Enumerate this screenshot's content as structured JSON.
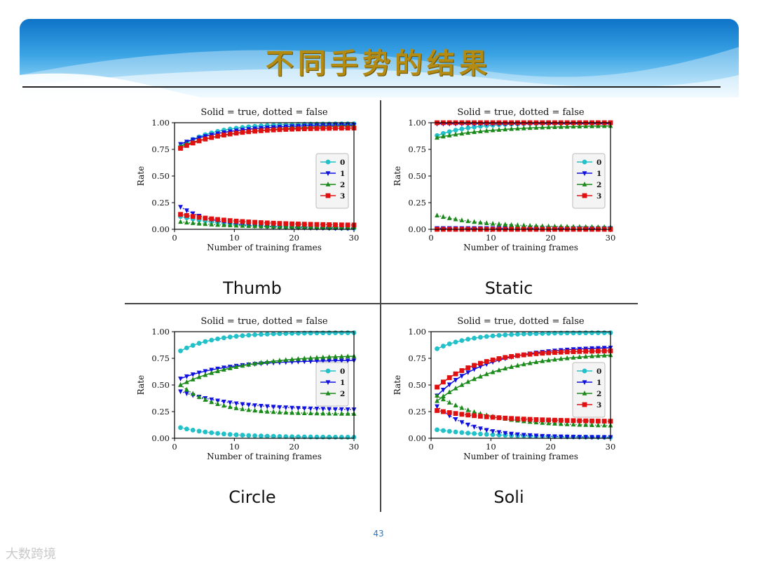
{
  "slide": {
    "title": "不同手势的结果",
    "page_number": "43",
    "watermark": "大数跨境",
    "labels": [
      "Thumb",
      "Static",
      "Circle",
      "Soli"
    ]
  },
  "chart_data": [
    {
      "type": "line",
      "name": "Thumb",
      "title": "Solid = true, dotted = false",
      "xlabel": "Number of training frames",
      "ylabel": "Rate",
      "xlim": [
        0,
        30
      ],
      "ylim": [
        0,
        1
      ],
      "xticks": [
        0,
        10,
        20,
        30
      ],
      "yticks": [
        "0.00",
        "0.25",
        "0.50",
        "0.75",
        "1.00"
      ],
      "legend": "right",
      "x": [
        1,
        30
      ],
      "series": [
        {
          "name": "0",
          "color": "#22c0c8",
          "marker": "circle",
          "style": "solid",
          "values": [
            0.78,
            0.99
          ]
        },
        {
          "name": "1",
          "color": "#1010e0",
          "marker": "tri-down",
          "style": "solid",
          "values": [
            0.8,
            0.98
          ]
        },
        {
          "name": "2",
          "color": "#1a8a1a",
          "marker": "tri-up",
          "style": "solid",
          "values": [
            0.78,
            0.97
          ]
        },
        {
          "name": "3",
          "color": "#e01010",
          "marker": "square",
          "style": "solid",
          "values": [
            0.76,
            0.95
          ]
        },
        {
          "name": "0",
          "color": "#22c0c8",
          "marker": "circle",
          "style": "dotted",
          "values": [
            0.12,
            0.01
          ]
        },
        {
          "name": "1",
          "color": "#1010e0",
          "marker": "tri-down",
          "style": "dotted",
          "values": [
            0.21,
            0.01
          ]
        },
        {
          "name": "2",
          "color": "#1a8a1a",
          "marker": "tri-up",
          "style": "dotted",
          "values": [
            0.07,
            0.02
          ]
        },
        {
          "name": "3",
          "color": "#e01010",
          "marker": "square",
          "style": "dotted",
          "values": [
            0.14,
            0.04
          ]
        }
      ]
    },
    {
      "type": "line",
      "name": "Static",
      "title": "Solid = true, dotted = false",
      "xlabel": "Number of training frames",
      "ylabel": "Rate",
      "xlim": [
        0,
        30
      ],
      "ylim": [
        0,
        1
      ],
      "xticks": [
        0,
        10,
        20,
        30
      ],
      "yticks": [
        "0.00",
        "0.25",
        "0.50",
        "0.75",
        "1.00"
      ],
      "legend": "right",
      "x": [
        1,
        30
      ],
      "series": [
        {
          "name": "0",
          "color": "#22c0c8",
          "marker": "circle",
          "style": "solid",
          "values": [
            0.88,
            1.0
          ]
        },
        {
          "name": "1",
          "color": "#1010e0",
          "marker": "tri-down",
          "style": "solid",
          "values": [
            0.99,
            0.99
          ]
        },
        {
          "name": "2",
          "color": "#1a8a1a",
          "marker": "tri-up",
          "style": "solid",
          "values": [
            0.86,
            0.97
          ]
        },
        {
          "name": "3",
          "color": "#e01010",
          "marker": "square",
          "style": "solid",
          "values": [
            1.0,
            1.0
          ]
        },
        {
          "name": "0",
          "color": "#22c0c8",
          "marker": "circle",
          "style": "dotted",
          "values": [
            0.0,
            0.0
          ]
        },
        {
          "name": "1",
          "color": "#1010e0",
          "marker": "tri-down",
          "style": "dotted",
          "values": [
            0.01,
            0.01
          ]
        },
        {
          "name": "2",
          "color": "#1a8a1a",
          "marker": "tri-up",
          "style": "dotted",
          "values": [
            0.13,
            0.02
          ]
        },
        {
          "name": "3",
          "color": "#e01010",
          "marker": "square",
          "style": "dotted",
          "values": [
            0.0,
            0.0
          ]
        }
      ]
    },
    {
      "type": "line",
      "name": "Circle",
      "title": "Solid = true, dotted = false",
      "xlabel": "Number of training frames",
      "ylabel": "Rate",
      "xlim": [
        0,
        30
      ],
      "ylim": [
        0,
        1
      ],
      "xticks": [
        0,
        10,
        20,
        30
      ],
      "yticks": [
        "0.00",
        "0.25",
        "0.50",
        "0.75",
        "1.00"
      ],
      "legend": "right",
      "x": [
        1,
        30
      ],
      "series": [
        {
          "name": "0",
          "color": "#22c0c8",
          "marker": "circle",
          "style": "solid",
          "values": [
            0.82,
            0.99
          ]
        },
        {
          "name": "1",
          "color": "#1010e0",
          "marker": "tri-down",
          "style": "solid",
          "values": [
            0.56,
            0.73
          ]
        },
        {
          "name": "2",
          "color": "#1a8a1a",
          "marker": "tri-up",
          "style": "solid",
          "values": [
            0.5,
            0.77
          ]
        },
        {
          "name": "0",
          "color": "#22c0c8",
          "marker": "circle",
          "style": "dotted",
          "values": [
            0.1,
            0.01
          ]
        },
        {
          "name": "1",
          "color": "#1010e0",
          "marker": "tri-down",
          "style": "dotted",
          "values": [
            0.44,
            0.27
          ]
        },
        {
          "name": "2",
          "color": "#1a8a1a",
          "marker": "tri-up",
          "style": "dotted",
          "values": [
            0.5,
            0.23
          ]
        }
      ]
    },
    {
      "type": "line",
      "name": "Soli",
      "title": "Solid = true, dotted = false",
      "xlabel": "Number of training frames",
      "ylabel": "Rate",
      "xlim": [
        0,
        30
      ],
      "ylim": [
        0,
        1
      ],
      "xticks": [
        0,
        10,
        20,
        30
      ],
      "yticks": [
        "0.00",
        "0.25",
        "0.50",
        "0.75",
        "1.00"
      ],
      "legend": "right",
      "x": [
        1,
        30
      ],
      "series": [
        {
          "name": "0",
          "color": "#22c0c8",
          "marker": "circle",
          "style": "solid",
          "values": [
            0.84,
            0.99
          ]
        },
        {
          "name": "1",
          "color": "#1010e0",
          "marker": "tri-down",
          "style": "solid",
          "values": [
            0.4,
            0.85
          ]
        },
        {
          "name": "2",
          "color": "#1a8a1a",
          "marker": "tri-up",
          "style": "solid",
          "values": [
            0.35,
            0.78
          ]
        },
        {
          "name": "3",
          "color": "#e01010",
          "marker": "square",
          "style": "solid",
          "values": [
            0.48,
            0.82
          ]
        },
        {
          "name": "0",
          "color": "#22c0c8",
          "marker": "circle",
          "style": "dotted",
          "values": [
            0.08,
            0.01
          ]
        },
        {
          "name": "1",
          "color": "#1010e0",
          "marker": "tri-down",
          "style": "dotted",
          "values": [
            0.3,
            0.01
          ]
        },
        {
          "name": "2",
          "color": "#1a8a1a",
          "marker": "tri-up",
          "style": "dotted",
          "values": [
            0.4,
            0.12
          ]
        },
        {
          "name": "3",
          "color": "#e01010",
          "marker": "square",
          "style": "dotted",
          "values": [
            0.26,
            0.16
          ]
        }
      ]
    }
  ]
}
